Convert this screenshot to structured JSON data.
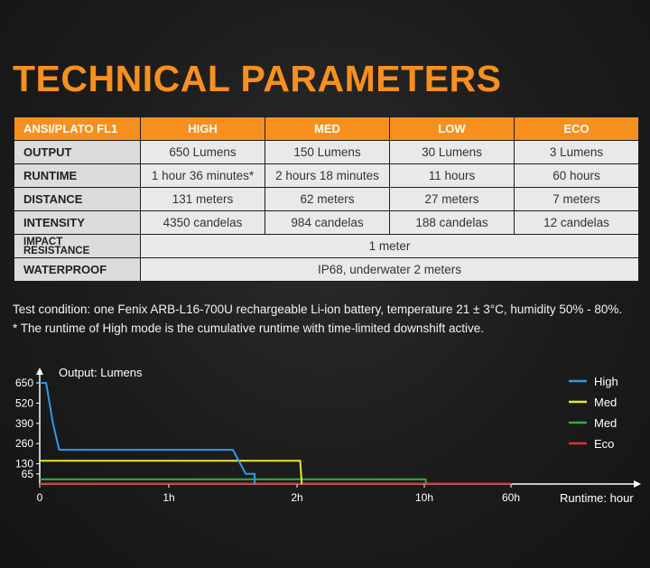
{
  "page": {
    "title": "TECHNICAL PARAMETERS"
  },
  "table": {
    "headers": [
      "ANSI/PLATO FL1",
      "HIGH",
      "MED",
      "LOW",
      "ECO"
    ],
    "rows": [
      {
        "label": "OUTPUT",
        "cells": [
          "650 Lumens",
          "150 Lumens",
          "30 Lumens",
          "3 Lumens"
        ]
      },
      {
        "label": "RUNTIME",
        "cells": [
          "1 hour 36 minutes*",
          "2 hours 18 minutes",
          "11 hours",
          "60 hours"
        ]
      },
      {
        "label": "DISTANCE",
        "cells": [
          "131 meters",
          "62 meters",
          "27 meters",
          "7 meters"
        ]
      },
      {
        "label": "INTENSITY",
        "cells": [
          "4350 candelas",
          "984 candelas",
          "188 candelas",
          "12 candelas"
        ]
      },
      {
        "label_line1": "IMPACT",
        "label_line2": "RESISTANCE",
        "merged": "1 meter"
      },
      {
        "label": "WATERPROOF",
        "merged": "IP68, underwater 2 meters"
      }
    ]
  },
  "notes": {
    "line1": "Test condition: one Fenix ARB-L16-700U rechargeable Li-ion battery, temperature 21 ± 3°C, humidity 50% - 80%.",
    "line2": "* The runtime of High mode is the cumulative runtime with time-limited downshift active."
  },
  "chart_data": {
    "type": "line",
    "ylabel": "Output: Lumens",
    "xlabel": "Runtime: hour",
    "yticks": [
      65,
      130,
      260,
      390,
      520,
      650
    ],
    "xticks": [
      "0",
      "1h",
      "2h",
      "10h",
      "60h"
    ],
    "legend_position": "top-right",
    "series": [
      {
        "name": "High",
        "color": "#2e9be6",
        "points": [
          [
            "0",
            650
          ],
          [
            "0.05h",
            650
          ],
          [
            "0.1h",
            400
          ],
          [
            "0.15h",
            220
          ],
          [
            "1.5h",
            220
          ],
          [
            "1.6h",
            65
          ],
          [
            "1.67h",
            65
          ],
          [
            "1.67h",
            0
          ]
        ]
      },
      {
        "name": "Med",
        "color": "#e8e830",
        "points": [
          [
            "0",
            150
          ],
          [
            "2.2h",
            150
          ],
          [
            "2.3h",
            0
          ]
        ]
      },
      {
        "name": "Med",
        "color": "#3aa845",
        "points": [
          [
            "0",
            30
          ],
          [
            "10.8h",
            30
          ],
          [
            "11h",
            0
          ]
        ]
      },
      {
        "name": "Eco",
        "color": "#e03030",
        "points": [
          [
            "0",
            3
          ],
          [
            "60h",
            3
          ],
          [
            "60h",
            0
          ]
        ]
      }
    ]
  }
}
